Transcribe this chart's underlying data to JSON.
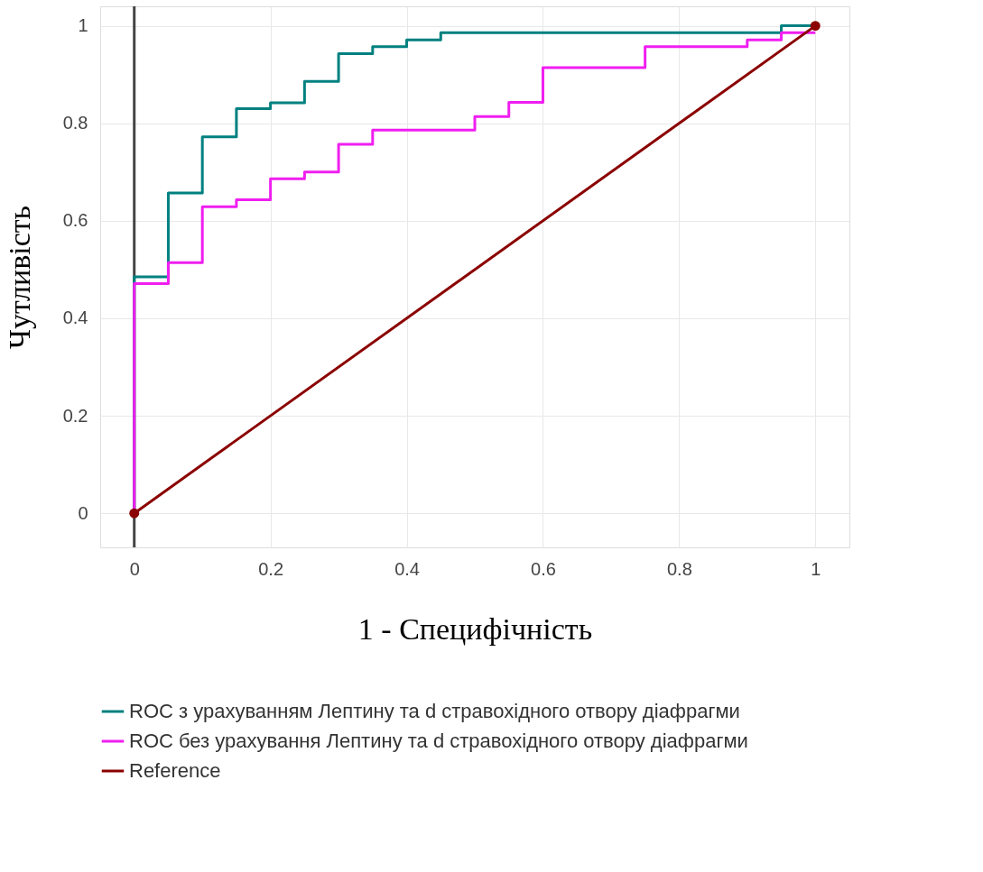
{
  "chart_data": {
    "type": "step",
    "xlabel": "1 - Специфічність",
    "ylabel": "Чутливість",
    "series": [
      {
        "name": "ROC з урахуванням Лептину та d стравохідного отвору діафрагми",
        "color": "#008080",
        "x": [
          0,
          0,
          0.05,
          0.1,
          0.15,
          0.2,
          0.25,
          0.3,
          0.35,
          0.4,
          0.45,
          0.95,
          1
        ],
        "values": [
          0,
          0.485,
          0.657,
          0.772,
          0.83,
          0.842,
          0.886,
          0.943,
          0.957,
          0.971,
          0.986,
          1.0,
          1.0
        ]
      },
      {
        "name": "ROC без урахування Лептину та d стравохідного отвору діафрагми",
        "color": "#f01ef0",
        "x": [
          0,
          0,
          0.05,
          0.1,
          0.15,
          0.2,
          0.25,
          0.3,
          0.35,
          0.5,
          0.55,
          0.6,
          0.75,
          0.9,
          0.95,
          1
        ],
        "values": [
          0,
          0.471,
          0.514,
          0.629,
          0.643,
          0.686,
          0.7,
          0.757,
          0.786,
          0.814,
          0.843,
          0.914,
          0.957,
          0.971,
          0.986,
          0.986
        ]
      },
      {
        "name": "Reference",
        "type": "line",
        "color": "#8b0000",
        "marker": "circle",
        "x": [
          0,
          1
        ],
        "values": [
          0,
          1
        ]
      }
    ],
    "xlim": [
      -0.05,
      1.05
    ],
    "ylim": [
      -0.07,
      1.04
    ],
    "xticks": [
      0,
      0.2,
      0.4,
      0.6,
      0.8,
      1
    ],
    "yticks": [
      0,
      0.2,
      0.4,
      0.6,
      0.8,
      1
    ],
    "ref_lines": [
      {
        "axis": "x",
        "value": 0,
        "color": "#444444"
      }
    ],
    "grid": true,
    "legend": "bottom left"
  }
}
